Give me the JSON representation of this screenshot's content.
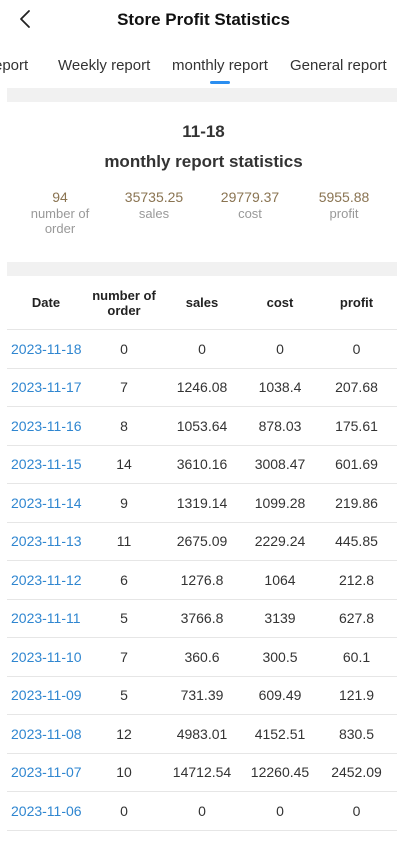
{
  "header": {
    "title": "Store Profit Statistics"
  },
  "tabs": [
    {
      "label": "eport"
    },
    {
      "label": "Weekly report"
    },
    {
      "label": "monthly report"
    },
    {
      "label": "General report"
    }
  ],
  "colors": {
    "accent": "#2b8ef0",
    "link": "#2f86d0",
    "stat_value": "#8a7452"
  },
  "summary": {
    "date": "11-18",
    "title": "monthly report statistics",
    "stats": [
      {
        "value": "94",
        "label": "number of order"
      },
      {
        "value": "35735.25",
        "label": "sales"
      },
      {
        "value": "29779.37",
        "label": "cost"
      },
      {
        "value": "5955.88",
        "label": "profit"
      }
    ]
  },
  "table": {
    "columns": [
      "Date",
      "number of order",
      "sales",
      "cost",
      "profit"
    ],
    "rows": [
      [
        "2023-11-18",
        "0",
        "0",
        "0",
        "0"
      ],
      [
        "2023-11-17",
        "7",
        "1246.08",
        "1038.4",
        "207.68"
      ],
      [
        "2023-11-16",
        "8",
        "1053.64",
        "878.03",
        "175.61"
      ],
      [
        "2023-11-15",
        "14",
        "3610.16",
        "3008.47",
        "601.69"
      ],
      [
        "2023-11-14",
        "9",
        "1319.14",
        "1099.28",
        "219.86"
      ],
      [
        "2023-11-13",
        "11",
        "2675.09",
        "2229.24",
        "445.85"
      ],
      [
        "2023-11-12",
        "6",
        "1276.8",
        "1064",
        "212.8"
      ],
      [
        "2023-11-11",
        "5",
        "3766.8",
        "3139",
        "627.8"
      ],
      [
        "2023-11-10",
        "7",
        "360.6",
        "300.5",
        "60.1"
      ],
      [
        "2023-11-09",
        "5",
        "731.39",
        "609.49",
        "121.9"
      ],
      [
        "2023-11-08",
        "12",
        "4983.01",
        "4152.51",
        "830.5"
      ],
      [
        "2023-11-07",
        "10",
        "14712.54",
        "12260.45",
        "2452.09"
      ],
      [
        "2023-11-06",
        "0",
        "0",
        "0",
        "0"
      ]
    ]
  }
}
